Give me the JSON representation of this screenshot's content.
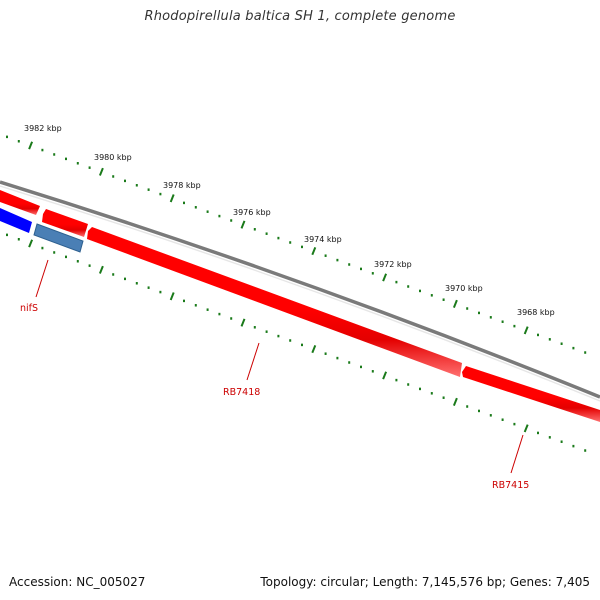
{
  "title": "Rhodopirellula baltica SH 1, complete genome",
  "footer": {
    "accession": "Accession: NC_005027",
    "summary": "Topology: circular; Length: 7,145,576 bp; Genes: 7,405"
  },
  "ruler_labels": [
    "3982 kbp",
    "3980 kbp",
    "3978 kbp",
    "3976 kbp",
    "3974 kbp",
    "3972 kbp",
    "3970 kbp",
    "3968 kbp"
  ],
  "gene_labels": [
    "nifS",
    "RB7418",
    "RB7415"
  ],
  "colors": {
    "backbone": "#7a7a7a",
    "forward_gene": "#ff0000",
    "reverse_gene": "#0000ff",
    "reverse_gene_alt": "#4a7fb5",
    "tick": "#1a7a1a",
    "gene_label": "#cc0000"
  }
}
